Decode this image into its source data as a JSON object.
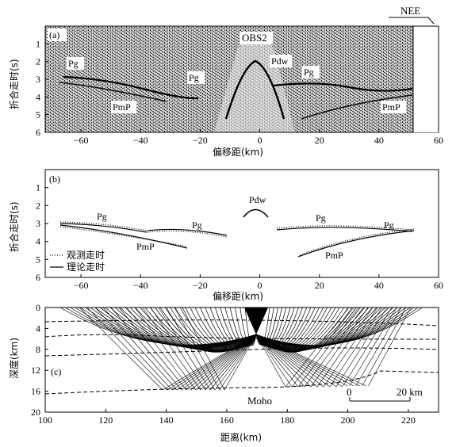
{
  "direction_label": "NEE",
  "station_label": "OBS2",
  "panel_a": {
    "label": "(a)",
    "ylabel": "折合走时(s)",
    "xlabel": "偏移距(km)",
    "xticks": [
      -60,
      -40,
      -20,
      0,
      20,
      40,
      60
    ],
    "yticks": [
      1,
      2,
      3,
      4,
      5,
      6
    ],
    "xlim": [
      -72,
      60
    ],
    "ylim": [
      0,
      6
    ],
    "data_xmax": 52,
    "phases": [
      "Pg",
      "Pg",
      "Pg",
      "Pdw",
      "PmP",
      "PmP"
    ]
  },
  "panel_b": {
    "label": "(b)",
    "ylabel": "折合走时(s)",
    "xlabel": "偏移距(km)",
    "xticks": [
      -60,
      -40,
      -20,
      0,
      20,
      40,
      60
    ],
    "yticks": [
      1,
      2,
      3,
      4,
      5,
      6
    ],
    "xlim": [
      -72,
      60
    ],
    "ylim": [
      0,
      6
    ],
    "phases": [
      "Pdw",
      "Pg",
      "Pg",
      "Pg",
      "Pg",
      "PmP",
      "PmP"
    ],
    "legend": [
      "观测走时",
      "理论走时"
    ]
  },
  "panel_c": {
    "label": "(c)",
    "ylabel": "深度(km)",
    "xlabel": "距离(km)",
    "xticks": [
      100,
      120,
      140,
      160,
      180,
      200,
      220
    ],
    "yticks": [
      0,
      4,
      8,
      12,
      16,
      20
    ],
    "xlim": [
      100,
      230
    ],
    "ylim": [
      0,
      20
    ],
    "moho_label": "Moho",
    "scale_bar": {
      "zero": "0",
      "end": "20 km",
      "length_km": 20
    }
  },
  "chart_data": [
    {
      "type": "scatter",
      "panel": "(b)",
      "xlabel": "偏移距(km)",
      "ylabel": "折合走时(s)",
      "ylim": [
        6,
        0
      ],
      "series": [
        {
          "name": "观测走时",
          "x": [
            -72,
            -65,
            -58,
            -52,
            -48,
            -45,
            -41,
            -36,
            -33
          ],
          "y": [
            3.0,
            3.1,
            3.2,
            3.4,
            3.55,
            3.7,
            3.8,
            4.0,
            4.2
          ]
        },
        {
          "name": "理论走时",
          "x": [
            -72,
            -65,
            -58,
            -52,
            -48,
            -45,
            -41,
            -36,
            -33
          ],
          "y": [
            3.05,
            3.15,
            3.3,
            3.5,
            3.7,
            3.8,
            3.95,
            4.1,
            4.25
          ]
        }
      ]
    }
  ]
}
